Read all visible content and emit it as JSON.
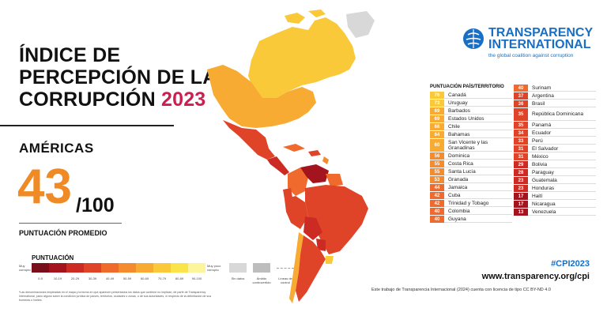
{
  "title": {
    "line1": "ÍNDICE DE",
    "line2": "PERCEPCIÓN DE LA",
    "line3_text": "CORRUPCIÓN",
    "year": "2023"
  },
  "region": "AMÉRICAS",
  "score": {
    "value": "43",
    "denominator": "/100",
    "label": "PUNTUACIÓN PROMEDIO"
  },
  "legend": {
    "title": "PUNTUACIÓN",
    "low_label": "Muy corrupto",
    "high_label": "Muy poco corrupto",
    "ranges": [
      "0-9",
      "10-19",
      "20-29",
      "30-39",
      "40-49",
      "50-59",
      "60-69",
      "70-79",
      "80-89",
      "90-100"
    ],
    "colors": [
      "#7a0f1c",
      "#a3141f",
      "#cc2b23",
      "#e04428",
      "#ef6a2c",
      "#f48b2f",
      "#f7ab33",
      "#f9c93a",
      "#fbe44a",
      "#fdf59b"
    ],
    "no_data": "Sin datos",
    "disputed": "Ámbito controvertido",
    "control_line": "Líneas de control",
    "no_data_color": "#d8d8d8",
    "disputed_color": "#bdbdbd",
    "control_color": "#9e9e9e"
  },
  "footnote": "*Las denominaciones empleadas en el mapa y la forma en que aparecen presentados los datos que contiene no implican, de parte de Transparency International, juicio alguno sobre la condición jurídica de países, territorios, ciudades o zonas, o de sus autoridades, ni respecto de la delimitación de sus fronteras o límites.",
  "brand": {
    "name_line1": "TRANSPARENCY",
    "name_line2": "INTERNATIONAL",
    "tagline": "the global coalition against corruption",
    "color": "#1a6fc4"
  },
  "table": {
    "header": "PUNTUACIÓN  PAÍS/TERRITORIO",
    "left": [
      {
        "score": "76",
        "country": "Canadá",
        "color": "#f9c93a"
      },
      {
        "score": "73",
        "country": "Uruguay",
        "color": "#f9c93a"
      },
      {
        "score": "69",
        "country": "Barbados",
        "color": "#f7ab33"
      },
      {
        "score": "69",
        "country": "Estados Unidos",
        "color": "#f7ab33"
      },
      {
        "score": "66",
        "country": "Chile",
        "color": "#f7ab33"
      },
      {
        "score": "64",
        "country": "Bahamas",
        "color": "#f7ab33"
      },
      {
        "score": "60",
        "country": "San Vicente y las Granadinas",
        "color": "#f7ab33"
      },
      {
        "score": "56",
        "country": "Dominica",
        "color": "#f48b2f"
      },
      {
        "score": "55",
        "country": "Costa Rica",
        "color": "#f48b2f"
      },
      {
        "score": "55",
        "country": "Santa Lucía",
        "color": "#f48b2f"
      },
      {
        "score": "53",
        "country": "Granada",
        "color": "#f48b2f"
      },
      {
        "score": "44",
        "country": "Jamaica",
        "color": "#ef6a2c"
      },
      {
        "score": "42",
        "country": "Cuba",
        "color": "#ef6a2c"
      },
      {
        "score": "42",
        "country": "Trinidad y Tobago",
        "color": "#ef6a2c"
      },
      {
        "score": "40",
        "country": "Colombia",
        "color": "#ef6a2c"
      },
      {
        "score": "40",
        "country": "Guyana",
        "color": "#ef6a2c"
      }
    ],
    "right": [
      {
        "score": "40",
        "country": "Surinam",
        "color": "#ef6a2c"
      },
      {
        "score": "37",
        "country": "Argentina",
        "color": "#e04428"
      },
      {
        "score": "36",
        "country": "Brasil",
        "color": "#e04428"
      },
      {
        "score": "35",
        "country": "República Dominicana",
        "color": "#e04428"
      },
      {
        "score": "35",
        "country": "Panamá",
        "color": "#e04428"
      },
      {
        "score": "34",
        "country": "Ecuador",
        "color": "#e04428"
      },
      {
        "score": "33",
        "country": "Perú",
        "color": "#e04428"
      },
      {
        "score": "31",
        "country": "El Salvador",
        "color": "#e04428"
      },
      {
        "score": "31",
        "country": "México",
        "color": "#e04428"
      },
      {
        "score": "29",
        "country": "Bolivia",
        "color": "#cc2b23"
      },
      {
        "score": "28",
        "country": "Paraguay",
        "color": "#cc2b23"
      },
      {
        "score": "23",
        "country": "Guatemala",
        "color": "#cc2b23"
      },
      {
        "score": "23",
        "country": "Honduras",
        "color": "#cc2b23"
      },
      {
        "score": "17",
        "country": "Haití",
        "color": "#a3141f"
      },
      {
        "score": "17",
        "country": "Nicaragua",
        "color": "#a3141f"
      },
      {
        "score": "13",
        "country": "Venezuela",
        "color": "#a3141f"
      }
    ]
  },
  "hashtag": "#CPI2023",
  "url": "www.transparency.org/cpi",
  "license": "Este trabajo de Transparencia Internacional (2024) cuenta con licencia de tipo CC BY-ND 4.0"
}
